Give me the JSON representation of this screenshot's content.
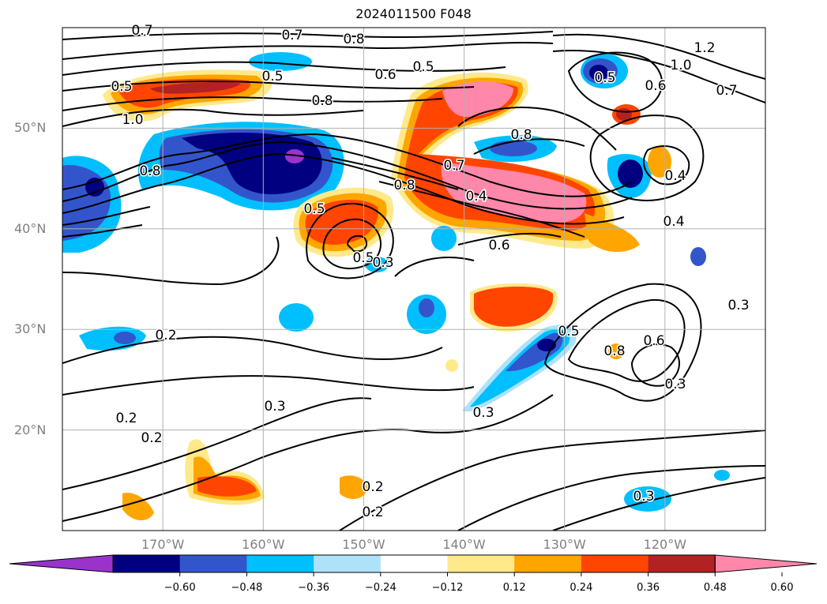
{
  "title": "2024011500 F048",
  "map": {
    "lon_range": [
      -180,
      -110
    ],
    "lat_range": [
      10,
      60
    ],
    "lat_labels": [
      {
        "text": "50°N",
        "lat": 50
      },
      {
        "text": "40°N",
        "lat": 40
      },
      {
        "text": "30°N",
        "lat": 30
      },
      {
        "text": "20°N",
        "lat": 20
      }
    ],
    "lon_labels": [
      {
        "text": "170°W",
        "lon": -170
      },
      {
        "text": "160°W",
        "lon": -160
      },
      {
        "text": "150°W",
        "lon": -150
      },
      {
        "text": "140°W",
        "lon": -140
      },
      {
        "text": "130°W",
        "lon": -130
      },
      {
        "text": "120°W",
        "lon": -120
      }
    ],
    "grid": true,
    "contour_color": "#000000",
    "contour_labels": [
      "0.7",
      "0.8",
      "0.7",
      "1.2",
      "1.0",
      "0.5",
      "0.6",
      "0.5",
      "0.5",
      "0.8",
      "0.6",
      "0.7",
      "0.5",
      "1.0",
      "0.8",
      "0.8",
      "0.7",
      "0.5",
      "0.8",
      "0.4",
      "0.4",
      "0.6",
      "0.5",
      "0.3",
      "0.4",
      "0.3",
      "0.5",
      "0.8",
      "0.6",
      "0.3",
      "0.2",
      "0.2",
      "0.2",
      "0.3",
      "0.3",
      "0.2",
      "0.2",
      "0.3"
    ]
  },
  "colorbar": {
    "colors": [
      "#9933cc",
      "#000080",
      "#3355cc",
      "#00bfff",
      "#aee2fa",
      "#ffffff",
      "#ffe98a",
      "#ffa500",
      "#ff4500",
      "#b22222",
      "#ff88aa"
    ],
    "ticks": [
      "−0.60",
      "−0.48",
      "−0.36",
      "−0.24",
      "−0.12",
      "0.12",
      "0.24",
      "0.36",
      "0.48",
      "0.60"
    ]
  }
}
